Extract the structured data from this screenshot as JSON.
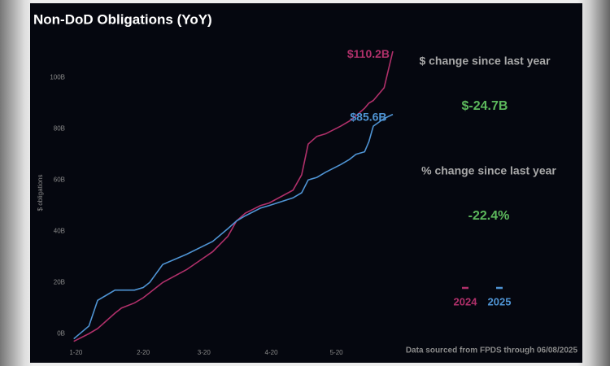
{
  "chart_data": {
    "type": "line",
    "title": "Non-DoD Obligations (YoY)",
    "y_label": "$ obligations",
    "x": [
      19,
      26,
      30,
      34,
      38,
      41,
      47,
      51,
      54,
      60,
      71,
      83,
      90,
      94,
      98,
      105,
      109,
      120,
      124,
      127,
      131,
      135,
      142,
      146,
      149,
      153,
      155,
      157,
      162,
      166
    ],
    "series": [
      {
        "name": "2024",
        "color": "#b0306a",
        "values": [
          -3,
          0,
          2,
          5,
          8,
          10,
          12,
          14,
          16,
          20,
          25,
          32,
          38,
          44,
          47,
          50,
          51,
          56,
          62,
          74,
          77,
          78,
          81,
          83,
          85,
          88,
          90,
          91,
          96,
          110.2
        ],
        "value_labels": [
          null,
          null,
          null,
          null,
          null,
          null,
          null,
          null,
          null,
          null,
          null,
          null,
          null,
          null,
          null,
          null,
          null,
          null,
          null,
          null,
          null,
          null,
          null,
          null,
          null,
          null,
          null,
          null,
          null,
          "$110.2B"
        ]
      },
      {
        "name": "2025",
        "color": "#4f94d4",
        "values": [
          -2,
          3,
          13,
          15,
          17,
          17,
          17,
          18,
          20,
          27,
          31,
          36,
          41,
          44,
          46,
          49,
          50,
          53,
          55,
          60,
          61,
          63,
          66,
          68,
          70,
          71,
          75,
          81,
          84,
          85.6
        ],
        "value_labels": [
          null,
          null,
          null,
          null,
          null,
          null,
          null,
          null,
          null,
          null,
          null,
          null,
          null,
          null,
          null,
          null,
          null,
          null,
          null,
          null,
          null,
          null,
          null,
          null,
          null,
          null,
          null,
          null,
          null,
          "$85.6B"
        ]
      }
    ],
    "xlim": [
      12,
      178
    ],
    "xticks": [
      {
        "value": 20,
        "label": "1-20"
      },
      {
        "value": 51,
        "label": "2-20"
      },
      {
        "value": 79,
        "label": "3-20"
      },
      {
        "value": 110,
        "label": "4-20"
      },
      {
        "value": 140,
        "label": "5-20"
      }
    ],
    "ylim": [
      -5,
      115
    ],
    "yticks": [
      {
        "value": 0,
        "label": "0B"
      },
      {
        "value": 20,
        "label": "20B"
      },
      {
        "value": 40,
        "label": "40B"
      },
      {
        "value": 60,
        "label": "60B"
      },
      {
        "value": 80,
        "label": "80B"
      },
      {
        "value": 100,
        "label": "100B"
      }
    ],
    "grid": false,
    "legend": "bottom-right",
    "annotations": [
      "$ change since last year",
      "$-24.7B",
      "% change since last year",
      "-22.4%"
    ],
    "source": "Data sourced from FPDS through 06/08/2025"
  }
}
